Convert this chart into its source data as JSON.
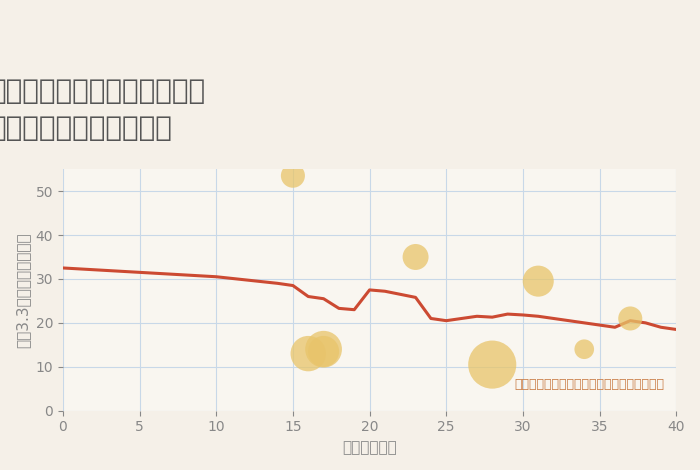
{
  "title": "兵庫県西宮市名塩ガーデンの\n築年数別中古戸建て価格",
  "xlabel": "築年数（年）",
  "ylabel": "坪（3.3㎡）単価（万円）",
  "background_color": "#f5f0e8",
  "plot_bg_color": "#f9f6f0",
  "line_color": "#cc4a32",
  "line_x": [
    0,
    5,
    10,
    14,
    15,
    16,
    17,
    18,
    19,
    20,
    21,
    22,
    23,
    24,
    25,
    26,
    27,
    28,
    29,
    30,
    31,
    32,
    33,
    34,
    35,
    36,
    37,
    38,
    39,
    40
  ],
  "line_y": [
    32.5,
    31.5,
    30.5,
    29.0,
    28.5,
    26.0,
    25.5,
    23.3,
    23.0,
    27.5,
    27.2,
    26.5,
    25.8,
    21.0,
    20.5,
    21.0,
    21.5,
    21.3,
    22.0,
    21.8,
    21.5,
    21.0,
    20.5,
    20.0,
    19.5,
    19.0,
    20.5,
    20.0,
    19.0,
    18.5
  ],
  "scatter_x": [
    15,
    17,
    16,
    17,
    23,
    28,
    31,
    34,
    37
  ],
  "scatter_y": [
    53.5,
    14.0,
    13.0,
    13.5,
    35.0,
    10.5,
    29.5,
    14.0,
    21.0
  ],
  "scatter_size": [
    300,
    700,
    650,
    500,
    350,
    1200,
    500,
    200,
    300
  ],
  "scatter_color": "#e8c46a",
  "scatter_alpha": 0.75,
  "annotation": "円の大きさは、取引のあった物件面積を示す",
  "annotation_color": "#c87941",
  "xlim": [
    0,
    40
  ],
  "ylim": [
    0,
    55
  ],
  "xticks": [
    0,
    5,
    10,
    15,
    20,
    25,
    30,
    35,
    40
  ],
  "yticks": [
    0,
    10,
    20,
    30,
    40,
    50
  ],
  "grid_color": "#c8d8e8",
  "title_color": "#555555",
  "tick_color": "#888888",
  "axis_label_color": "#888888",
  "title_fontsize": 20,
  "axis_label_fontsize": 11,
  "tick_fontsize": 10,
  "annotation_fontsize": 9
}
